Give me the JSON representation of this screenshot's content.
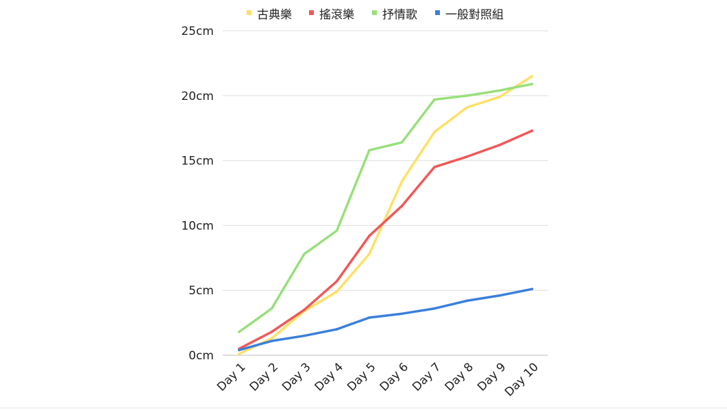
{
  "chart_data": {
    "type": "line",
    "title": "",
    "xlabel": "",
    "ylabel": "",
    "categories": [
      "Day 1",
      "Day 2",
      "Day 3",
      "Day 4",
      "Day 5",
      "Day 6",
      "Day 7",
      "Day 8",
      "Day 9",
      "Day 10"
    ],
    "yticks": [
      "0cm",
      "5cm",
      "10cm",
      "15cm",
      "20cm",
      "25cm"
    ],
    "ylim": [
      0,
      25
    ],
    "grid": true,
    "legend_position": "top",
    "series": [
      {
        "name": "古典樂",
        "color": "#ffe066",
        "values": [
          0.1,
          1.3,
          3.4,
          4.9,
          7.8,
          13.4,
          17.2,
          19.1,
          19.9,
          21.5
        ]
      },
      {
        "name": "搖滾樂",
        "color": "#f25757",
        "values": [
          0.5,
          1.8,
          3.5,
          5.7,
          9.2,
          11.5,
          14.5,
          15.3,
          16.2,
          17.3
        ]
      },
      {
        "name": "抒情歌",
        "color": "#97e07a",
        "values": [
          1.8,
          3.6,
          7.8,
          9.6,
          15.8,
          16.4,
          19.7,
          20.0,
          20.4,
          20.9
        ]
      },
      {
        "name": "一般對照組",
        "color": "#3a7fdc",
        "values": [
          0.4,
          1.1,
          1.5,
          2.0,
          2.9,
          3.2,
          3.6,
          4.2,
          4.6,
          5.1
        ]
      }
    ]
  }
}
